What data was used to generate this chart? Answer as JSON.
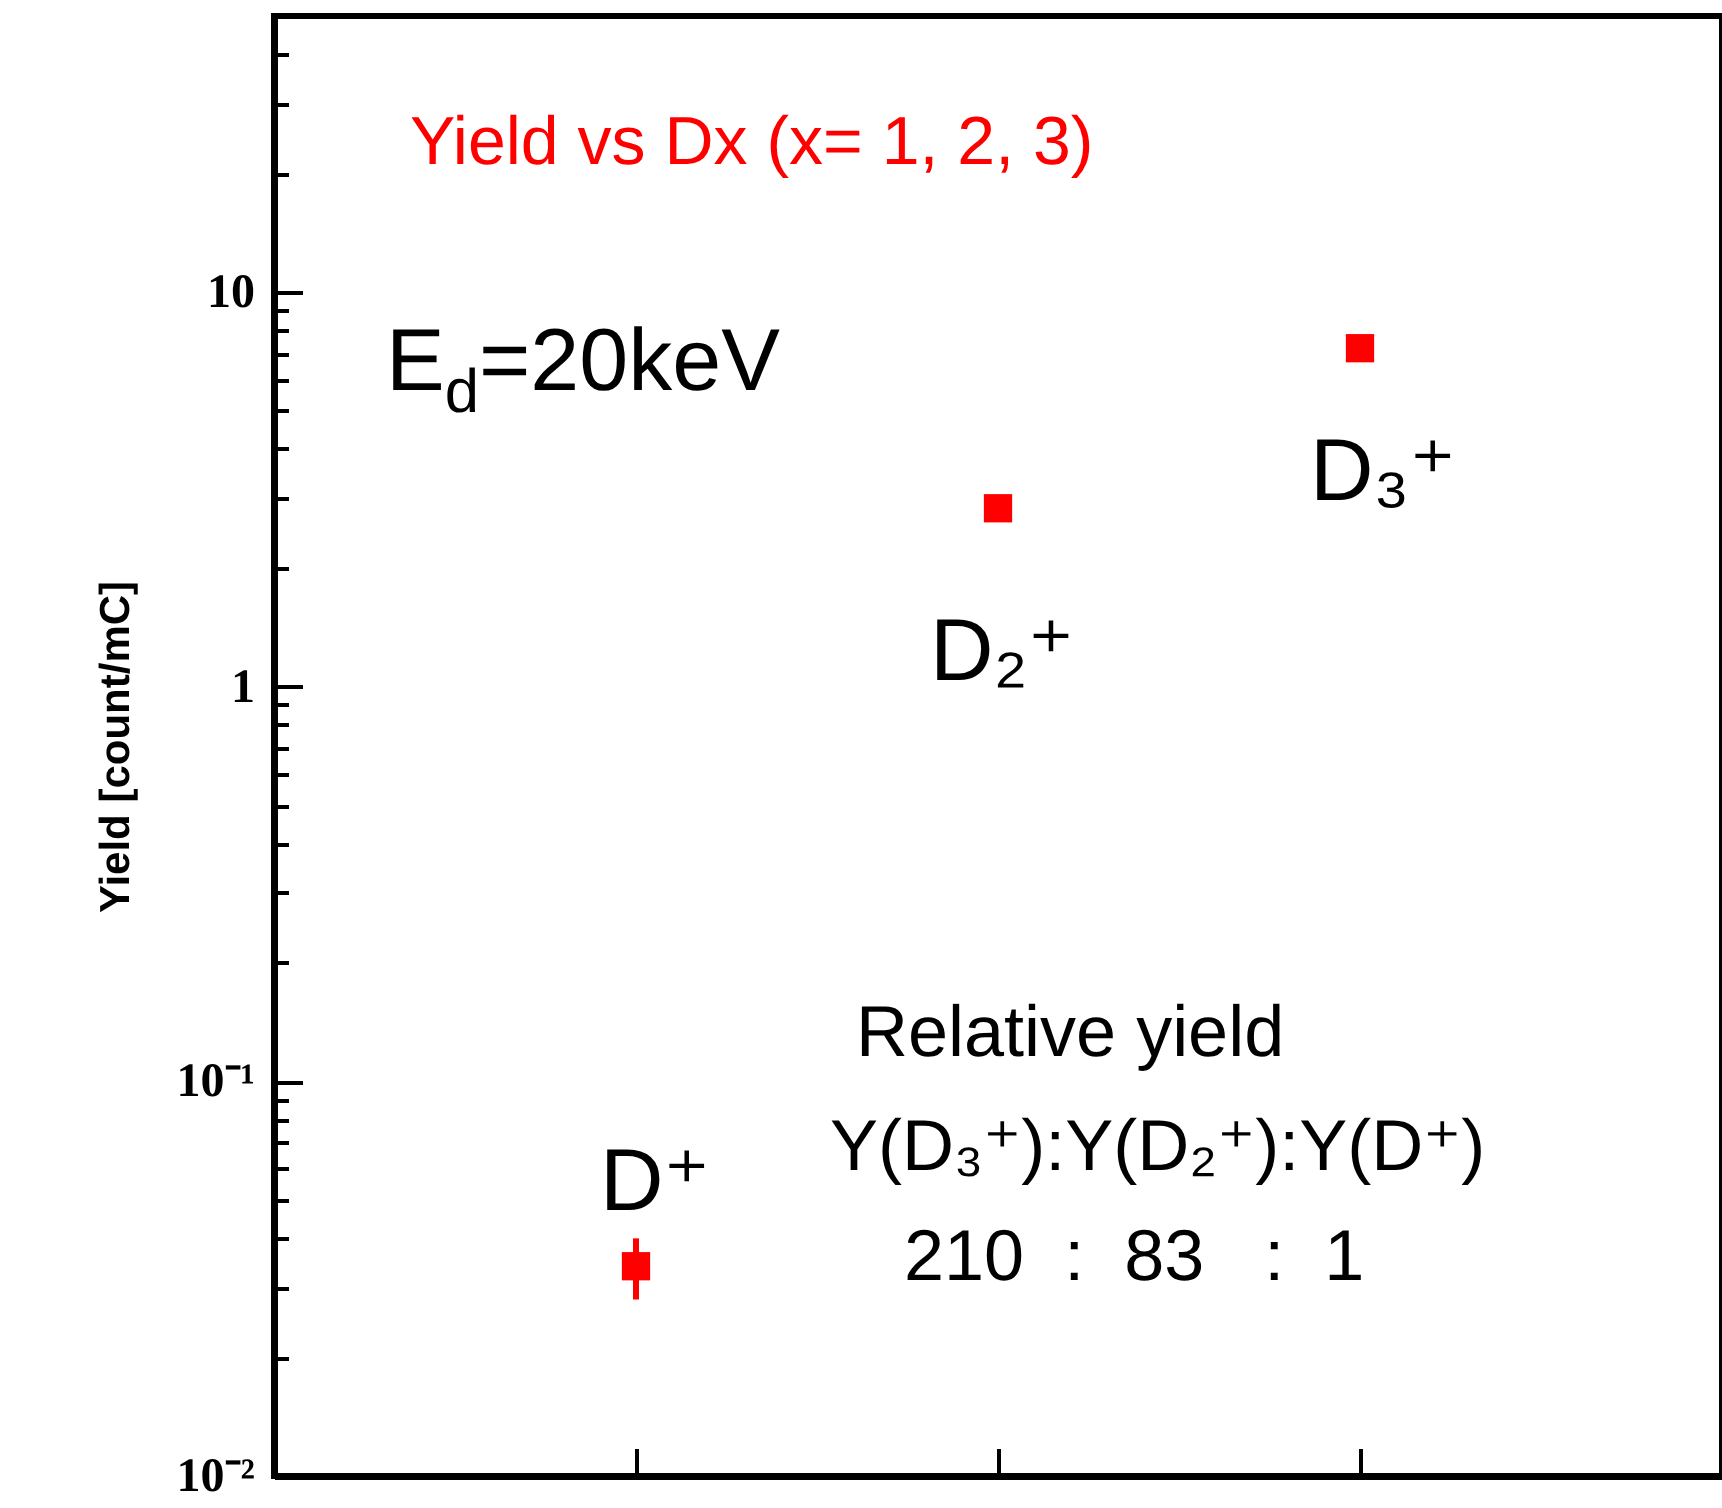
{
  "chart_data": {
    "type": "scatter",
    "title": "Yield vs Dx (x= 1, 2, 3)",
    "ylabel": "Yield [count/mC]",
    "categories": [
      null,
      null,
      null
    ],
    "series": [
      {
        "color": "#ff0000",
        "values": [
          0.034,
          2.83,
          7.2
        ],
        "errors": [
          [
            0.028,
            0.04
          ],
          null,
          null
        ]
      }
    ],
    "log": "y",
    "ylim": [
      0.01,
      50
    ],
    "yticks": [
      {
        "value": 0.01,
        "label": "10⁻²"
      },
      {
        "value": 0.02,
        "label": null
      },
      {
        "value": 0.03,
        "label": null
      },
      {
        "value": 0.04,
        "label": null
      },
      {
        "value": 0.05,
        "label": null
      },
      {
        "value": 0.06,
        "label": null
      },
      {
        "value": 0.07,
        "label": null
      },
      {
        "value": 0.08,
        "label": null
      },
      {
        "value": 0.09,
        "label": null
      },
      {
        "value": 0.1,
        "label": "10⁻¹"
      },
      {
        "value": 0.2,
        "label": null
      },
      {
        "value": 0.3,
        "label": null
      },
      {
        "value": 0.4,
        "label": null
      },
      {
        "value": 0.5,
        "label": null
      },
      {
        "value": 0.6,
        "label": null
      },
      {
        "value": 0.7,
        "label": null
      },
      {
        "value": 0.8,
        "label": null
      },
      {
        "value": 0.9,
        "label": null
      },
      1,
      {
        "value": 2,
        "label": null
      },
      {
        "value": 3,
        "label": null
      },
      {
        "value": 4,
        "label": null
      },
      {
        "value": 5,
        "label": null
      },
      {
        "value": 6,
        "label": null
      },
      {
        "value": 7,
        "label": null
      },
      {
        "value": 8,
        "label": null
      },
      {
        "value": 9,
        "label": null
      },
      10,
      {
        "value": 20,
        "label": null
      },
      {
        "value": 30,
        "label": null
      },
      {
        "value": 40,
        "label": null
      }
    ],
    "tick_labels": "y",
    "marker": "square",
    "grid": false,
    "annotations": [
      "E$_{d}$=20keV",
      "D⁺",
      "D₂⁺",
      "D₃⁺",
      "Relative yield",
      "Y(D₃⁺):Y(D₂⁺):Y(D⁺)",
      "210  :  83   :  1"
    ]
  }
}
